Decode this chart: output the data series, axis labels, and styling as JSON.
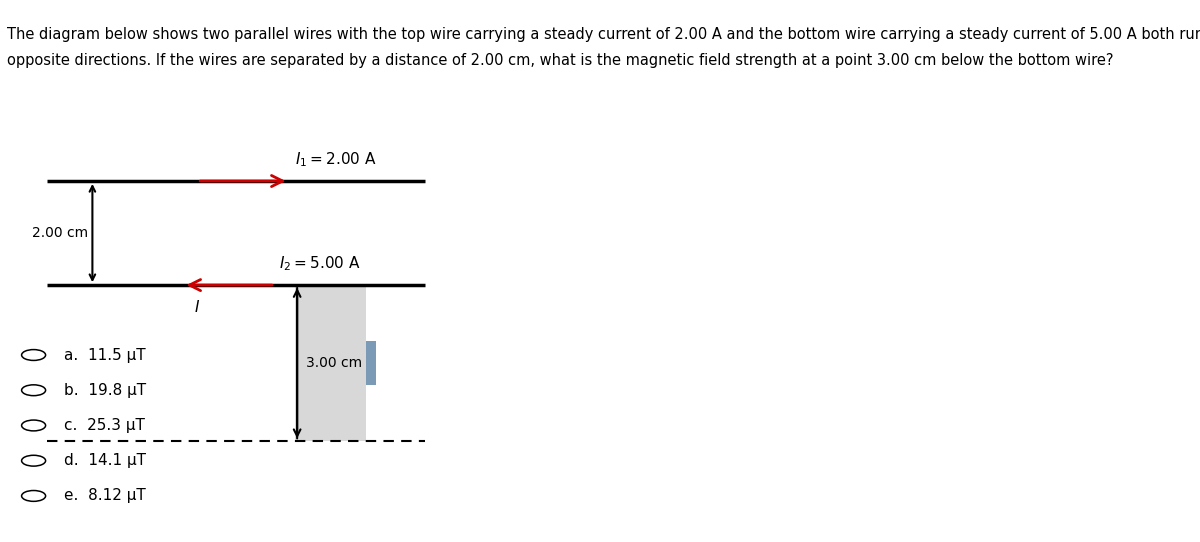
{
  "title_line1": "The diagram below shows two parallel wires with the top wire carrying a steady current of 2.00 A and the bottom wire carrying a steady current of 5.00 A both running in",
  "title_line2": "opposite directions. If the wires are separated by a distance of 2.00 cm, what is the magnetic field strength at a point 3.00 cm below the bottom wire?",
  "title_bg_color": "#c8dff0",
  "title_fontsize": 10.5,
  "wire1_label": "$I_1 = 2.00$ A",
  "wire2_label": "$I_2 = 5.00$ A",
  "dim_label_12": "2.00 cm",
  "dim_label_23": "3.00 cm",
  "label_I": "I",
  "choices": [
    "a.  11.5 μT",
    "b.  19.8 μT",
    "c.  25.3 μT",
    "d.  14.1 μT",
    "e.  8.12 μT"
  ],
  "wire_color": "#000000",
  "arrow_color": "#cc0000",
  "dim_arrow_color": "#000000",
  "choice_fontsize": 11,
  "bg_color": "#ffffff",
  "shaded_box_color": "#d8d8d8",
  "small_rect_color": "#7a9ab5"
}
